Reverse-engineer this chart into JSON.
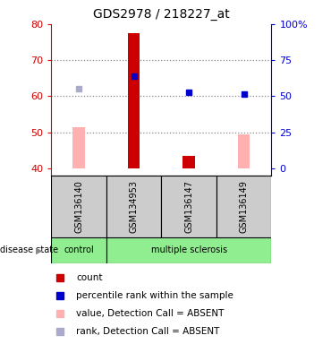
{
  "title": "GDS2978 / 218227_at",
  "samples": [
    "GSM136140",
    "GSM134953",
    "GSM136147",
    "GSM136149"
  ],
  "groups": [
    "control",
    "multiple sclerosis",
    "multiple sclerosis",
    "multiple sclerosis"
  ],
  "ylim_left": [
    38,
    80
  ],
  "yticks_left": [
    40,
    50,
    60,
    70,
    80
  ],
  "yticks_right_pos": [
    40,
    50,
    60,
    70,
    80
  ],
  "yright_labels": [
    "0",
    "25",
    "50",
    "75",
    "100%"
  ],
  "bar_bottom": 40,
  "red_bars": {
    "GSM136140": null,
    "GSM134953": 77.5,
    "GSM136147": 43.5,
    "GSM136149": null
  },
  "pink_bars": {
    "GSM136140": 51.5,
    "GSM134953": null,
    "GSM136147": null,
    "GSM136149": 49.5
  },
  "blue_squares": {
    "GSM134953": 65.5,
    "GSM136147": 61.0,
    "GSM136149": 60.5
  },
  "lightblue_squares": {
    "GSM136140": 62.0
  },
  "bar_color_red": "#cc0000",
  "bar_color_pink": "#ffb0b0",
  "sq_color_blue": "#0000cc",
  "sq_color_lightblue": "#aaaacc",
  "sample_box_color": "#cccccc",
  "left_axis_color": "#cc0000",
  "right_axis_color": "#0000cc",
  "legend_items": [
    {
      "label": "count",
      "color": "#cc0000"
    },
    {
      "label": "percentile rank within the sample",
      "color": "#0000cc"
    },
    {
      "label": "value, Detection Call = ABSENT",
      "color": "#ffb0b0"
    },
    {
      "label": "rank, Detection Call = ABSENT",
      "color": "#aaaacc"
    }
  ]
}
